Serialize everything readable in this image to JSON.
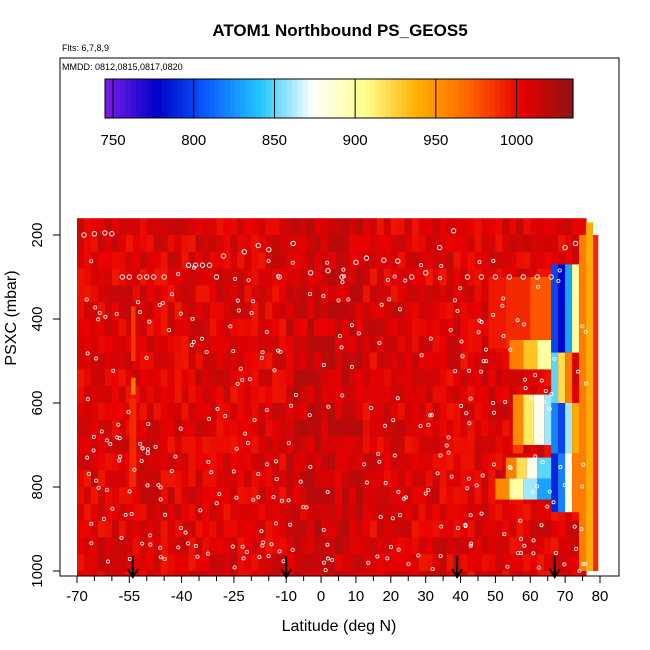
{
  "chart_data": {
    "type": "heatmap",
    "title": "ATOM1 Northbound PS_GEOS5",
    "subtitle_flights": "Flts: 6,7,8,9",
    "subtitle_dates": "MMDD: 0812,0815,0817,0820",
    "xlabel": "Latitude (deg N)",
    "ylabel": "PSXC (mbar)",
    "x_ticks": [
      "-70",
      "-55",
      "-40",
      "-25",
      "-10",
      "0",
      "10",
      "20",
      "30",
      "40",
      "50",
      "60",
      "70",
      "80"
    ],
    "x_tick_values": [
      -70,
      -55,
      -40,
      -25,
      -10,
      0,
      10,
      20,
      30,
      40,
      50,
      60,
      70,
      80
    ],
    "y_ticks": [
      "200",
      "400",
      "600",
      "800",
      "1000"
    ],
    "y_tick_values": [
      200,
      400,
      600,
      800,
      1000
    ],
    "xlim": [
      -70,
      82
    ],
    "ylim": [
      1010,
      130
    ],
    "y_reversed": true,
    "colorbar": {
      "ticks": [
        "750",
        "800",
        "850",
        "900",
        "950",
        "1000"
      ],
      "tick_values": [
        750,
        800,
        850,
        900,
        950,
        1000
      ],
      "range": [
        745,
        1035
      ],
      "colors": [
        "#7b1fe6",
        "#0000c8",
        "#0c60ff",
        "#22c8ff",
        "#ffffff",
        "#ffff8c",
        "#ffb000",
        "#ff6400",
        "#e80000",
        "#8c1414"
      ]
    },
    "arrows_lat": [
      -54,
      -10,
      39,
      67
    ],
    "background_field_mbar": 1005,
    "anomalies": [
      {
        "lat_range": [
          -54.5,
          -53.2
        ],
        "p_range": [
          370,
          500
        ],
        "value": 985
      },
      {
        "lat_range": [
          -54.5,
          -53.2
        ],
        "p_range": [
          540,
          580
        ],
        "value": 960
      },
      {
        "lat_range": [
          -55,
          -53
        ],
        "p_range": [
          590,
          800
        ],
        "value": 990
      },
      {
        "lat_range": [
          48,
          53
        ],
        "p_range": [
          300,
          470
        ],
        "value": 995
      },
      {
        "lat_range": [
          53,
          60
        ],
        "p_range": [
          300,
          470
        ],
        "value": 990
      },
      {
        "lat_range": [
          60,
          66
        ],
        "p_range": [
          300,
          470
        ],
        "value": 975
      },
      {
        "lat_range": [
          54,
          58
        ],
        "p_range": [
          450,
          520
        ],
        "value": 960
      },
      {
        "lat_range": [
          58,
          62
        ],
        "p_range": [
          450,
          520
        ],
        "value": 930
      },
      {
        "lat_range": [
          62,
          66
        ],
        "p_range": [
          450,
          520
        ],
        "value": 900
      },
      {
        "lat_range": [
          55,
          58
        ],
        "p_range": [
          580,
          700
        ],
        "value": 955
      },
      {
        "lat_range": [
          58,
          61
        ],
        "p_range": [
          580,
          700
        ],
        "value": 915
      },
      {
        "lat_range": [
          61,
          64
        ],
        "p_range": [
          580,
          700
        ],
        "value": 880
      },
      {
        "lat_range": [
          64,
          66.5
        ],
        "p_range": [
          580,
          700
        ],
        "value": 860
      },
      {
        "lat_range": [
          55,
          58
        ],
        "p_range": [
          700,
          720
        ],
        "value": 985
      },
      {
        "lat_range": [
          53,
          56
        ],
        "p_range": [
          730,
          780
        ],
        "value": 960
      },
      {
        "lat_range": [
          56,
          59
        ],
        "p_range": [
          730,
          780
        ],
        "value": 920
      },
      {
        "lat_range": [
          59,
          62
        ],
        "p_range": [
          730,
          780
        ],
        "value": 880
      },
      {
        "lat_range": [
          62,
          66.5
        ],
        "p_range": [
          730,
          780
        ],
        "value": 850
      },
      {
        "lat_range": [
          50,
          54
        ],
        "p_range": [
          780,
          830
        ],
        "value": 955
      },
      {
        "lat_range": [
          54,
          58
        ],
        "p_range": [
          780,
          830
        ],
        "value": 900
      },
      {
        "lat_range": [
          58,
          62
        ],
        "p_range": [
          780,
          830
        ],
        "value": 860
      },
      {
        "lat_range": [
          62,
          66.5
        ],
        "p_range": [
          780,
          830
        ],
        "value": 830
      },
      {
        "lat_range": [
          66,
          68
        ],
        "p_range": [
          270,
          480
        ],
        "value": 800
      },
      {
        "lat_range": [
          68,
          70
        ],
        "p_range": [
          270,
          480
        ],
        "value": 780
      },
      {
        "lat_range": [
          70,
          72
        ],
        "p_range": [
          270,
          480
        ],
        "value": 830
      },
      {
        "lat_range": [
          72,
          74
        ],
        "p_range": [
          270,
          480
        ],
        "value": 900
      },
      {
        "lat_range": [
          66,
          68
        ],
        "p_range": [
          480,
          600
        ],
        "value": 850
      },
      {
        "lat_range": [
          68,
          70
        ],
        "p_range": [
          480,
          600
        ],
        "value": 920
      },
      {
        "lat_range": [
          70,
          72
        ],
        "p_range": [
          480,
          600
        ],
        "value": 960
      },
      {
        "lat_range": [
          66,
          68
        ],
        "p_range": [
          600,
          720
        ],
        "value": 820
      },
      {
        "lat_range": [
          68,
          70
        ],
        "p_range": [
          600,
          720
        ],
        "value": 800
      },
      {
        "lat_range": [
          70,
          72
        ],
        "p_range": [
          600,
          720
        ],
        "value": 860
      },
      {
        "lat_range": [
          72,
          74
        ],
        "p_range": [
          600,
          720
        ],
        "value": 940
      },
      {
        "lat_range": [
          66,
          68
        ],
        "p_range": [
          720,
          860
        ],
        "value": 790
      },
      {
        "lat_range": [
          68,
          70
        ],
        "p_range": [
          720,
          860
        ],
        "value": 820
      },
      {
        "lat_range": [
          70,
          72
        ],
        "p_range": [
          720,
          860
        ],
        "value": 880
      },
      {
        "lat_range": [
          72,
          74
        ],
        "p_range": [
          720,
          860
        ],
        "value": 960
      },
      {
        "lat_range": [
          74,
          76
        ],
        "p_range": [
          200,
          1000
        ],
        "value": 960
      },
      {
        "lat_range": [
          76,
          78
        ],
        "p_range": [
          170,
          1000
        ],
        "value": 940
      },
      {
        "lat_range": [
          78,
          79.5
        ],
        "p_range": [
          200,
          1000
        ],
        "value": 990
      }
    ],
    "flight_points": [
      {
        "lat": -68,
        "p": 200
      },
      {
        "lat": -65,
        "p": 197
      },
      {
        "lat": -62,
        "p": 195
      },
      {
        "lat": -60,
        "p": 197
      },
      {
        "lat": -57,
        "p": 300
      },
      {
        "lat": -55,
        "p": 300
      },
      {
        "lat": -52,
        "p": 300
      },
      {
        "lat": -50,
        "p": 300
      },
      {
        "lat": -48,
        "p": 300
      },
      {
        "lat": -45,
        "p": 300
      },
      {
        "lat": -38,
        "p": 272
      },
      {
        "lat": -36,
        "p": 272
      },
      {
        "lat": -34,
        "p": 272
      },
      {
        "lat": -32,
        "p": 272
      },
      {
        "lat": -30,
        "p": 300
      },
      {
        "lat": -28,
        "p": 250
      },
      {
        "lat": -22,
        "p": 240
      },
      {
        "lat": -18,
        "p": 225
      },
      {
        "lat": -15,
        "p": 235
      },
      {
        "lat": -12,
        "p": 300
      },
      {
        "lat": -8,
        "p": 220
      },
      {
        "lat": -3,
        "p": 290
      },
      {
        "lat": 2,
        "p": 285
      },
      {
        "lat": 6,
        "p": 300
      },
      {
        "lat": 10,
        "p": 265
      },
      {
        "lat": 13,
        "p": 255
      },
      {
        "lat": 18,
        "p": 260
      },
      {
        "lat": 22,
        "p": 262
      },
      {
        "lat": 26,
        "p": 300
      },
      {
        "lat": 30,
        "p": 290
      },
      {
        "lat": 34,
        "p": 230
      },
      {
        "lat": 38,
        "p": 190
      },
      {
        "lat": 42,
        "p": 300
      },
      {
        "lat": 46,
        "p": 300
      },
      {
        "lat": 50,
        "p": 300
      },
      {
        "lat": 54,
        "p": 300
      },
      {
        "lat": 58,
        "p": 300
      },
      {
        "lat": 62,
        "p": 300
      },
      {
        "lat": 66,
        "p": 300
      },
      {
        "lat": 70,
        "p": 230
      },
      {
        "lat": 73,
        "p": 220
      }
    ]
  }
}
